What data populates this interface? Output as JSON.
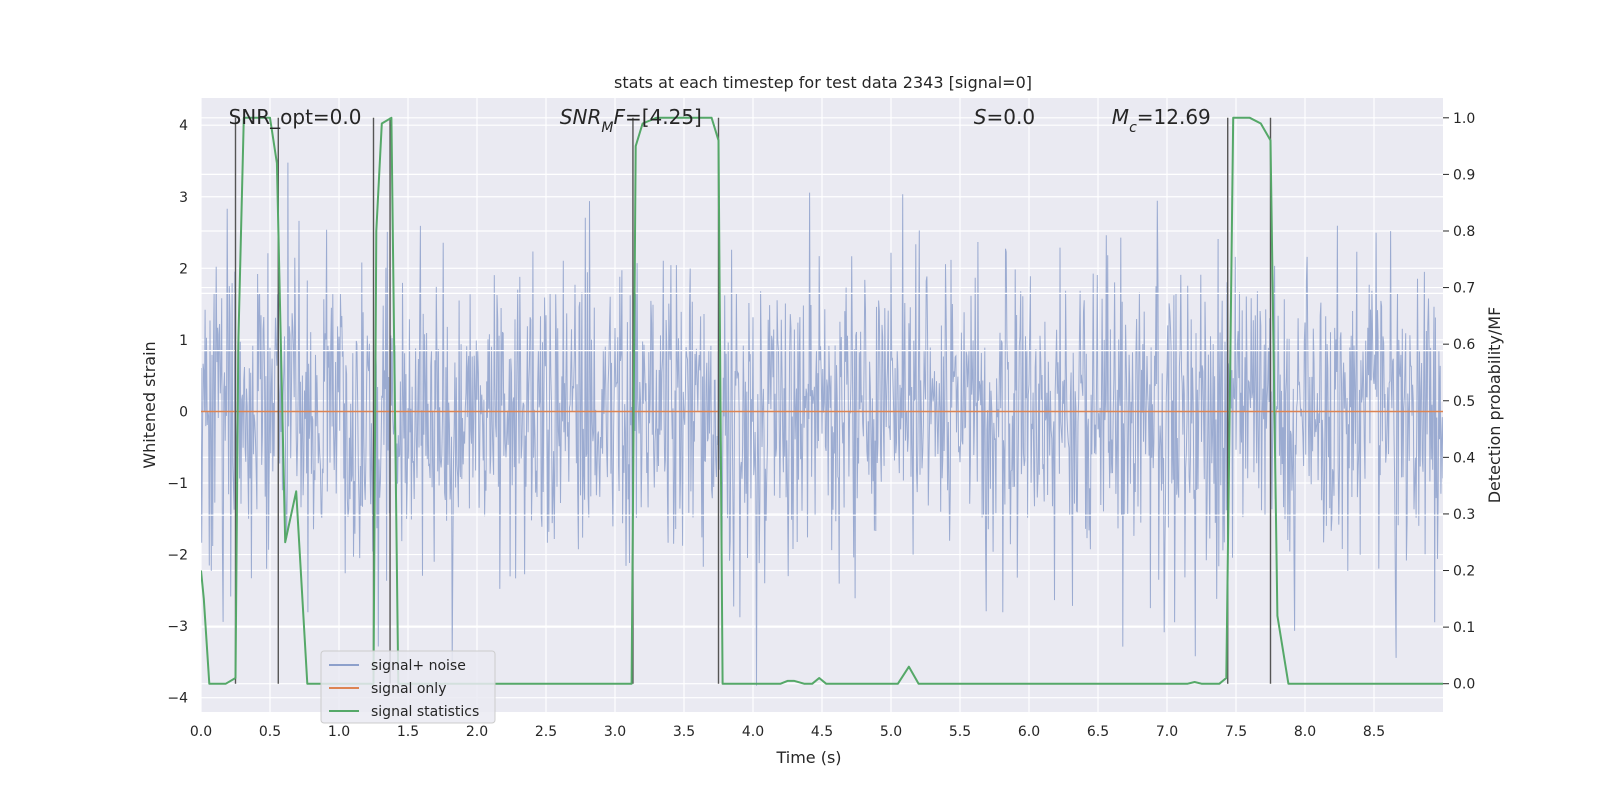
{
  "chart_data": {
    "type": "line",
    "title": "stats at each timestep for test data 2343 [signal=0]",
    "xlabel": "Time (s)",
    "ylabel": "Whitened strain",
    "y2label": "Detection probability/MF",
    "xlim": [
      0,
      9.0
    ],
    "ylim": [
      -4.2,
      4.38
    ],
    "y2lim": [
      -0.05,
      1.035
    ],
    "xticks": [
      0.0,
      0.5,
      1.0,
      1.5,
      2.0,
      2.5,
      3.0,
      3.5,
      4.0,
      4.5,
      5.0,
      5.5,
      6.0,
      6.5,
      7.0,
      7.5,
      8.0,
      8.5
    ],
    "xtick_labels": [
      "0.0",
      "0.5",
      "1.0",
      "1.5",
      "2.0",
      "2.5",
      "3.0",
      "3.5",
      "4.0",
      "4.5",
      "5.0",
      "5.5",
      "6.0",
      "6.5",
      "7.0",
      "7.5",
      "8.0",
      "8.5"
    ],
    "yticks": [
      -4,
      -3,
      -2,
      -1,
      0,
      1,
      2,
      3,
      4
    ],
    "ytick_labels": [
      "−4",
      "−3",
      "−2",
      "−1",
      "0",
      "1",
      "2",
      "3",
      "4"
    ],
    "y2ticks": [
      0.0,
      0.1,
      0.2,
      0.3,
      0.4,
      0.5,
      0.6,
      0.7,
      0.8,
      0.9,
      1.0
    ],
    "y2tick_labels": [
      "0.0",
      "0.1",
      "0.2",
      "0.3",
      "0.4",
      "0.5",
      "0.6",
      "0.7",
      "0.8",
      "0.9",
      "1.0"
    ],
    "grid": true,
    "legend_position": "bottom-left",
    "annotations": [
      {
        "parts": [
          {
            "text": "SNR_opt=0.0",
            "italic": false
          }
        ],
        "x": 0.2
      },
      {
        "parts": [
          {
            "text": "SNR",
            "italic": true
          },
          {
            "text": "M",
            "italic": true,
            "sub": true
          },
          {
            "text": "F",
            "italic": true
          },
          {
            "text": "=[4.25]",
            "italic": false
          }
        ],
        "x": 2.6
      },
      {
        "parts": [
          {
            "text": "S",
            "italic": true
          },
          {
            "text": "=0.0",
            "italic": false
          }
        ],
        "x": 5.6
      },
      {
        "parts": [
          {
            "text": "M",
            "italic": true
          },
          {
            "text": "c",
            "italic": true,
            "sub": true
          },
          {
            "text": "=12.69",
            "italic": false
          }
        ],
        "x": 6.6
      }
    ],
    "series": [
      {
        "name": "signal+ noise",
        "color": "#8da0cb",
        "axis": "left",
        "style": "noise",
        "sample_rate": 200,
        "seed": 2343,
        "sigma": 1.05
      },
      {
        "name": "signal only",
        "color": "#dd8452",
        "axis": "left",
        "style": "flat",
        "value": 0
      },
      {
        "name": "signal statistics",
        "color": "#55a868",
        "axis": "right",
        "x": [
          0.0,
          0.02,
          0.06,
          0.18,
          0.25,
          0.27,
          0.31,
          0.34,
          0.5,
          0.55,
          0.61,
          0.69,
          0.77,
          0.84,
          1.25,
          1.27,
          1.31,
          1.38,
          1.43,
          3.12,
          3.15,
          3.2,
          3.3,
          3.7,
          3.75,
          3.78,
          3.85,
          4.2,
          4.25,
          4.3,
          4.37,
          4.43,
          4.48,
          4.53,
          5.05,
          5.13,
          5.2,
          5.25,
          7.15,
          7.2,
          7.25,
          7.38,
          7.43,
          7.46,
          7.48,
          7.6,
          7.68,
          7.75,
          7.8,
          7.88,
          9.0
        ],
        "y": [
          0.2,
          0.15,
          0.0,
          0.0,
          0.01,
          0.6,
          1.0,
          1.0,
          1.0,
          0.92,
          0.25,
          0.34,
          0.0,
          0.0,
          0.0,
          0.8,
          0.99,
          1.0,
          0.0,
          0.0,
          0.95,
          0.99,
          1.0,
          1.0,
          0.96,
          0.0,
          0.0,
          0.0,
          0.005,
          0.005,
          0.0,
          0.0,
          0.01,
          0.0,
          0.0,
          0.03,
          0.0,
          0.0,
          0.0,
          0.003,
          0.0,
          0.0,
          0.01,
          0.6,
          1.0,
          1.0,
          0.99,
          0.96,
          0.12,
          0.0,
          0.0
        ]
      }
    ],
    "vlines": [
      {
        "x": 0.25,
        "y_from": 0.0,
        "y_to": 1.0
      },
      {
        "x": 0.56,
        "y_from": 0.0,
        "y_to": 1.0
      },
      {
        "x": 1.25,
        "y_from": 0.0,
        "y_to": 1.0
      },
      {
        "x": 1.37,
        "y_from": 0.0,
        "y_to": 1.0
      },
      {
        "x": 3.13,
        "y_from": 0.0,
        "y_to": 1.0
      },
      {
        "x": 3.75,
        "y_from": 0.0,
        "y_to": 1.0
      },
      {
        "x": 7.44,
        "y_from": 0.0,
        "y_to": 1.0
      },
      {
        "x": 7.75,
        "y_from": 0.0,
        "y_to": 1.0
      }
    ],
    "hbands": [
      {
        "y": -1.45
      },
      {
        "y": 0.85
      },
      {
        "y": 1.65
      }
    ],
    "colors": {
      "plot_bg": "#eaeaf2",
      "grid": "#ffffff",
      "vline": "#555555",
      "text": "#262626"
    }
  }
}
